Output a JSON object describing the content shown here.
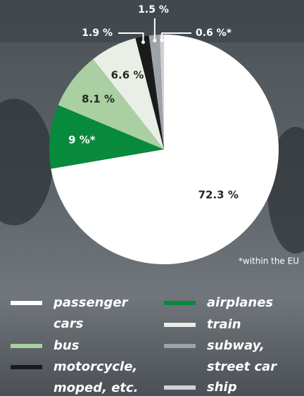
{
  "chart_data": {
    "type": "pie",
    "categories": [
      "passenger cars",
      "airplanes",
      "bus",
      "train",
      "motorcycle, moped, etc.",
      "subway, street car",
      "ship"
    ],
    "values": [
      72.3,
      9,
      8.1,
      6.6,
      1.9,
      1.5,
      0.6
    ],
    "value_labels": [
      "72.3 %",
      "9 %*",
      "8.1 %",
      "6.6 %",
      "1.9 %",
      "1.5 %",
      "0.6 %*"
    ],
    "colors": [
      "#ffffff",
      "#078a3c",
      "#a9cfa2",
      "#e9eee6",
      "#1b1b1b",
      "#9ea3a9",
      "#cdd1d5"
    ],
    "footnote": "*within the EU"
  }
}
